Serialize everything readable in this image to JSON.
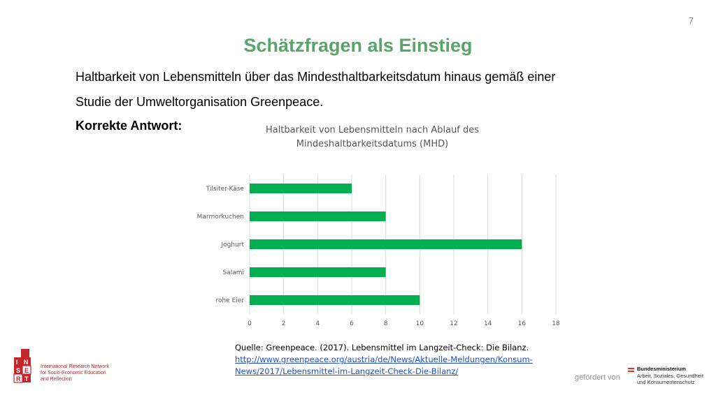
{
  "page_number": "7",
  "title": "Schätzfragen als Einstieg",
  "intro_line1": "Haltbarkeit von Lebensmitteln über das Mindesthaltbarkeitsdatum hinaus gemäß einer",
  "intro_line2": "Studie der Umweltorganisation Greenpeace.",
  "answer_label": "Korrekte Antwort:",
  "chart_data": {
    "type": "bar",
    "orientation": "horizontal",
    "title_line1": "Haltbarkeit von Lebensmitteln nach Ablauf des",
    "title_line2": "Mindeshaltbarkeitsdatums (MHD)",
    "categories": [
      "Tilsiter-Käse",
      "Marmorkuchen",
      "Joghurt",
      "Salami",
      "rohe Eier"
    ],
    "values": [
      6,
      8,
      16,
      8,
      10
    ],
    "xlim": [
      0,
      18
    ],
    "xticks": [
      0,
      2,
      4,
      6,
      8,
      10,
      12,
      14,
      16,
      18
    ],
    "grid": true,
    "bar_color": "#00b050",
    "xlabel": "",
    "ylabel": ""
  },
  "source": {
    "text": "Quelle: Greenpeace. (2017). Lebensmittel im Langzeit-Check: Die Bilanz.",
    "link_line1": "http://www.greenpeace.org/austria/de/News/Aktuelle-Meldungen/Konsum-",
    "link_line2": "News/2017/Lebensmittel-im-Langzeit-Check-Die-Bilanz/"
  },
  "logo": {
    "letters": [
      "I",
      "N",
      "S",
      "E",
      "R",
      "T"
    ],
    "line1": "International Research Network",
    "line2": "for Socio-Economic Education",
    "line3": "and Reflection"
  },
  "funded_by": "gefördert von",
  "ministry": {
    "line1": "Bundesministerium",
    "line2": "Arbeit, Soziales, Gesundheit",
    "line3": "und Konsumentenschutz"
  },
  "colors": {
    "title": "#5aa469",
    "bar": "#00b050",
    "logo_red": "#c4262e",
    "link": "#1f4fd6"
  }
}
